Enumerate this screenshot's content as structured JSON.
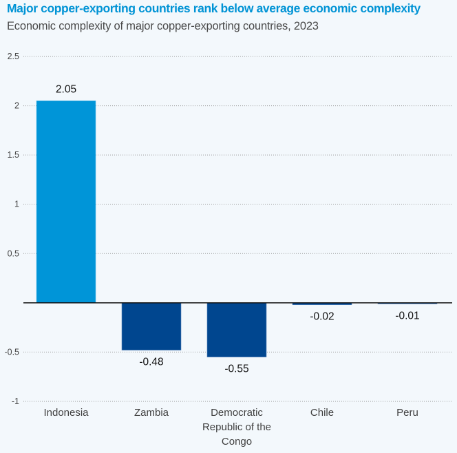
{
  "chart_data": {
    "type": "bar",
    "title": "Major copper-exporting countries rank below average economic complexity",
    "subtitle": "Economic complexity of major copper-exporting countries, 2023",
    "xlabel": "",
    "ylabel": "",
    "categories": [
      "Indonesia",
      "Zambia",
      "Democratic Republic of the Congo",
      "Chile",
      "Peru"
    ],
    "category_label_lines": [
      [
        "Indonesia"
      ],
      [
        "Zambia"
      ],
      [
        "Democratic",
        "Republic of the",
        "Congo"
      ],
      [
        "Chile"
      ],
      [
        "Peru"
      ]
    ],
    "values": [
      2.05,
      -0.48,
      -0.55,
      -0.02,
      -0.01
    ],
    "data_labels": [
      "2.05",
      "-0.48",
      "-0.55",
      "-0.02",
      "-0.01"
    ],
    "bar_colors": [
      "#0095d8",
      "#00468f",
      "#00468f",
      "#00468f",
      "#00468f"
    ],
    "ylim": [
      -1,
      2.5
    ],
    "yticks": [
      2.5,
      2,
      1.5,
      1,
      0.5,
      -0.5,
      -1
    ],
    "ytick_labels": [
      "2.5",
      "2",
      "1.5",
      "1",
      "0.5",
      "-0.5",
      "-1"
    ],
    "grid": "horizontal-dotted",
    "zero_line": true,
    "legend": "none"
  }
}
